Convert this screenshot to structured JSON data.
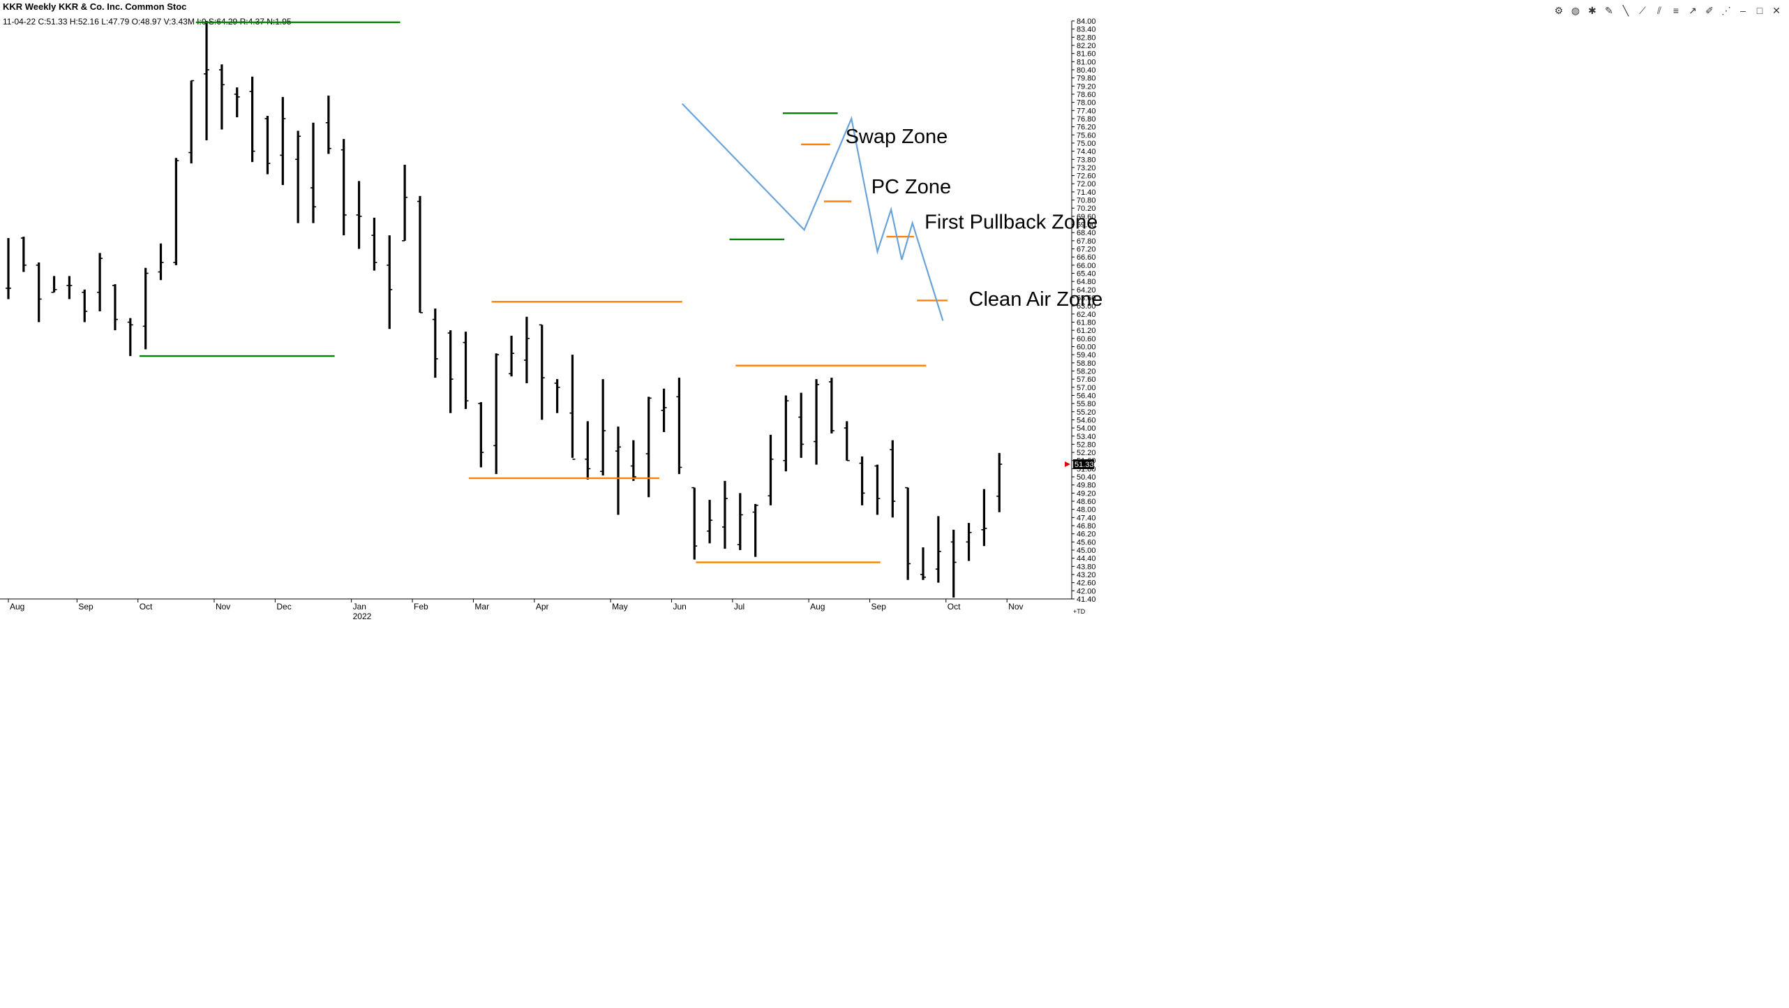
{
  "header": {
    "title": "KKR Weekly KKR & Co. Inc. Common Stoc",
    "stats": "11-04-22 C:51.33 H:52.16 L:47.79 O:48.97 V:3.43M I:0 S:64.29 R:4.37 N:1.95"
  },
  "toolbar": {
    "icons": [
      "gear-icon",
      "palette-icon",
      "settings-icon",
      "pencil-icon",
      "line-icon",
      "slash-icon",
      "channel-icon",
      "fib-icon",
      "ray-icon",
      "brush-icon",
      "zigzag-icon",
      "minimize-icon",
      "maximize-icon",
      "close-icon"
    ]
  },
  "colors": {
    "bars": "#000000",
    "green": "#008000",
    "orange": "#ff8000",
    "blue": "#6aa3d9",
    "price_tag": "#000000"
  },
  "chart_data": {
    "type": "ohlc",
    "title": "KKR Weekly KKR & Co. Inc. Common Stoc",
    "ylim": [
      41.4,
      84.0
    ],
    "y_ticks": [
      "84.00",
      "83.40",
      "82.80",
      "82.20",
      "81.60",
      "81.00",
      "80.40",
      "79.80",
      "79.20",
      "78.60",
      "78.00",
      "77.40",
      "76.80",
      "76.20",
      "75.60",
      "75.00",
      "74.40",
      "73.80",
      "73.20",
      "72.60",
      "72.00",
      "71.40",
      "70.80",
      "70.20",
      "69.60",
      "69.00",
      "68.40",
      "67.80",
      "67.20",
      "66.60",
      "66.00",
      "65.40",
      "64.80",
      "64.20",
      "63.60",
      "63.00",
      "62.40",
      "61.80",
      "61.20",
      "60.60",
      "60.00",
      "59.40",
      "58.80",
      "58.20",
      "57.60",
      "57.00",
      "56.40",
      "55.80",
      "55.20",
      "54.60",
      "54.00",
      "53.40",
      "52.80",
      "52.20",
      "51.60",
      "51.00",
      "50.40",
      "49.80",
      "49.20",
      "48.60",
      "48.00",
      "47.40",
      "46.80",
      "46.20",
      "45.60",
      "45.00",
      "44.40",
      "43.80",
      "43.20",
      "42.60",
      "42.00",
      "41.40"
    ],
    "x_labels": [
      {
        "label": "Aug",
        "index": 0
      },
      {
        "label": "Sep",
        "index": 4.5
      },
      {
        "label": "Oct",
        "index": 8.5
      },
      {
        "label": "Nov",
        "index": 13.5
      },
      {
        "label": "Dec",
        "index": 17.5
      },
      {
        "label": "Jan",
        "index": 22.5
      },
      {
        "label": "Feb",
        "index": 26.5
      },
      {
        "label": "Mar",
        "index": 30.5
      },
      {
        "label": "Apr",
        "index": 34.5
      },
      {
        "label": "May",
        "index": 39.5
      },
      {
        "label": "Jun",
        "index": 43.5
      },
      {
        "label": "Jul",
        "index": 47.5
      },
      {
        "label": "Aug",
        "index": 52.5
      },
      {
        "label": "Sep",
        "index": 56.5
      },
      {
        "label": "Oct",
        "index": 61.5
      },
      {
        "label": "Nov",
        "index": 65.5
      }
    ],
    "year_label": {
      "label": "2022",
      "index": 22.5
    },
    "last_price": "51.33",
    "corner_label": "+TD",
    "bars": [
      {
        "o": 64.3,
        "h": 68.0,
        "l": 63.5,
        "c": 64.3
      },
      {
        "o": 68.0,
        "h": 68.1,
        "l": 65.5,
        "c": 66.0
      },
      {
        "o": 66.0,
        "h": 66.2,
        "l": 61.8,
        "c": 63.5
      },
      {
        "o": 64.0,
        "h": 65.2,
        "l": 64.0,
        "c": 64.2
      },
      {
        "o": 64.5,
        "h": 65.2,
        "l": 63.5,
        "c": 64.5
      },
      {
        "o": 64.0,
        "h": 64.2,
        "l": 61.8,
        "c": 62.6
      },
      {
        "o": 64.0,
        "h": 66.9,
        "l": 62.6,
        "c": 66.5
      },
      {
        "o": 64.5,
        "h": 64.6,
        "l": 61.2,
        "c": 62.0
      },
      {
        "o": 61.8,
        "h": 62.1,
        "l": 59.3,
        "c": 61.6
      },
      {
        "o": 61.5,
        "h": 65.8,
        "l": 59.8,
        "c": 65.4
      },
      {
        "o": 65.5,
        "h": 67.6,
        "l": 64.9,
        "c": 66.2
      },
      {
        "o": 66.2,
        "h": 73.9,
        "l": 66.0,
        "c": 73.7
      },
      {
        "o": 74.3,
        "h": 79.6,
        "l": 73.5,
        "c": 79.6
      },
      {
        "o": 80.1,
        "h": 84.0,
        "l": 75.2,
        "c": 80.4
      },
      {
        "o": 80.4,
        "h": 80.8,
        "l": 76.0,
        "c": 79.3
      },
      {
        "o": 78.6,
        "h": 79.1,
        "l": 76.9,
        "c": 78.4
      },
      {
        "o": 78.8,
        "h": 79.9,
        "l": 73.6,
        "c": 74.4
      },
      {
        "o": 76.8,
        "h": 77.0,
        "l": 72.7,
        "c": 73.5
      },
      {
        "o": 74.1,
        "h": 78.4,
        "l": 71.9,
        "c": 76.8
      },
      {
        "o": 73.8,
        "h": 75.9,
        "l": 69.1,
        "c": 75.5
      },
      {
        "o": 71.7,
        "h": 76.5,
        "l": 69.1,
        "c": 70.3
      },
      {
        "o": 76.5,
        "h": 78.5,
        "l": 74.2,
        "c": 74.6
      },
      {
        "o": 74.5,
        "h": 75.3,
        "l": 68.2,
        "c": 69.7
      },
      {
        "o": 69.7,
        "h": 72.2,
        "l": 67.2,
        "c": 69.6
      },
      {
        "o": 68.2,
        "h": 69.5,
        "l": 65.6,
        "c": 66.2
      },
      {
        "o": 66.0,
        "h": 68.2,
        "l": 61.3,
        "c": 64.2
      },
      {
        "o": 67.8,
        "h": 73.4,
        "l": 67.8,
        "c": 71.0
      },
      {
        "o": 70.7,
        "h": 71.1,
        "l": 62.5,
        "c": 62.5
      },
      {
        "o": 62.0,
        "h": 62.8,
        "l": 57.7,
        "c": 59.1
      },
      {
        "o": 61.0,
        "h": 61.2,
        "l": 55.1,
        "c": 57.6
      },
      {
        "o": 60.3,
        "h": 61.1,
        "l": 55.4,
        "c": 56.0
      },
      {
        "o": 55.8,
        "h": 55.9,
        "l": 51.1,
        "c": 52.2
      },
      {
        "o": 52.7,
        "h": 59.5,
        "l": 50.6,
        "c": 59.4
      },
      {
        "o": 58.0,
        "h": 60.8,
        "l": 57.8,
        "c": 59.5
      },
      {
        "o": 59.0,
        "h": 62.2,
        "l": 57.3,
        "c": 60.6
      },
      {
        "o": 61.6,
        "h": 61.6,
        "l": 54.6,
        "c": 57.7
      },
      {
        "o": 57.3,
        "h": 57.6,
        "l": 55.1,
        "c": 57.0
      },
      {
        "o": 55.1,
        "h": 59.4,
        "l": 51.8,
        "c": 51.7
      },
      {
        "o": 51.7,
        "h": 54.5,
        "l": 50.2,
        "c": 51.0
      },
      {
        "o": 50.8,
        "h": 57.6,
        "l": 50.5,
        "c": 53.8
      },
      {
        "o": 52.3,
        "h": 54.1,
        "l": 47.6,
        "c": 52.6
      },
      {
        "o": 51.2,
        "h": 53.1,
        "l": 50.1,
        "c": 50.4
      },
      {
        "o": 52.1,
        "h": 56.3,
        "l": 48.9,
        "c": 56.2
      },
      {
        "o": 55.3,
        "h": 56.9,
        "l": 53.7,
        "c": 55.5
      },
      {
        "o": 56.3,
        "h": 57.7,
        "l": 50.6,
        "c": 51.1
      },
      {
        "o": 49.6,
        "h": 49.6,
        "l": 44.3,
        "c": 45.3
      },
      {
        "o": 46.4,
        "h": 48.7,
        "l": 45.5,
        "c": 47.2
      },
      {
        "o": 46.7,
        "h": 50.1,
        "l": 45.1,
        "c": 48.8
      },
      {
        "o": 45.4,
        "h": 49.2,
        "l": 45.0,
        "c": 47.6
      },
      {
        "o": 47.8,
        "h": 48.4,
        "l": 44.5,
        "c": 48.3
      },
      {
        "o": 49.0,
        "h": 53.5,
        "l": 48.3,
        "c": 51.7
      },
      {
        "o": 51.6,
        "h": 56.4,
        "l": 50.8,
        "c": 56.0
      },
      {
        "o": 54.8,
        "h": 56.6,
        "l": 51.8,
        "c": 52.8
      },
      {
        "o": 53.0,
        "h": 57.6,
        "l": 51.3,
        "c": 57.2
      },
      {
        "o": 57.4,
        "h": 57.7,
        "l": 53.6,
        "c": 53.8
      },
      {
        "o": 54.0,
        "h": 54.5,
        "l": 51.6,
        "c": 51.6
      },
      {
        "o": 51.4,
        "h": 51.9,
        "l": 48.3,
        "c": 49.2
      },
      {
        "o": 51.2,
        "h": 51.3,
        "l": 47.6,
        "c": 48.8
      },
      {
        "o": 52.4,
        "h": 53.1,
        "l": 47.4,
        "c": 48.6
      },
      {
        "o": 49.6,
        "h": 49.6,
        "l": 42.8,
        "c": 44.0
      },
      {
        "o": 43.2,
        "h": 45.2,
        "l": 42.8,
        "c": 43.0
      },
      {
        "o": 43.6,
        "h": 47.5,
        "l": 42.6,
        "c": 44.9
      },
      {
        "o": 45.6,
        "h": 46.5,
        "l": 41.5,
        "c": 44.1
      },
      {
        "o": 45.6,
        "h": 47.0,
        "l": 44.2,
        "c": 46.3
      },
      {
        "o": 46.5,
        "h": 49.5,
        "l": 45.3,
        "c": 46.6
      },
      {
        "o": 48.97,
        "h": 52.16,
        "l": 47.79,
        "c": 51.33
      }
    ],
    "green_levels": [
      {
        "y": 83.9,
        "x0": 12.3,
        "x1": 25.7
      },
      {
        "y": 59.3,
        "x0": 8.6,
        "x1": 21.4
      },
      {
        "y": 77.2,
        "x0": 50.8,
        "x1": 54.4
      },
      {
        "y": 67.9,
        "x0": 47.3,
        "x1": 50.9
      }
    ],
    "orange_levels": [
      {
        "y": 63.3,
        "x0": 31.7,
        "x1": 44.2
      },
      {
        "y": 50.3,
        "x0": 30.2,
        "x1": 42.7
      },
      {
        "y": 44.1,
        "x0": 45.1,
        "x1": 57.2
      },
      {
        "y": 58.6,
        "x0": 47.7,
        "x1": 60.2
      },
      {
        "y": 74.9,
        "x0": 52.0,
        "x1": 53.9
      },
      {
        "y": 70.7,
        "x0": 53.5,
        "x1": 55.3
      },
      {
        "y": 68.1,
        "x0": 57.6,
        "x1": 59.4
      },
      {
        "y": 63.4,
        "x0": 59.6,
        "x1": 61.6
      }
    ],
    "schematic_path": [
      {
        "x": 44.2,
        "y": 77.9
      },
      {
        "x": 52.2,
        "y": 68.6
      },
      {
        "x": 55.3,
        "y": 76.8
      },
      {
        "x": 57.0,
        "y": 67.0
      },
      {
        "x": 57.9,
        "y": 70.1
      },
      {
        "x": 58.6,
        "y": 66.4
      },
      {
        "x": 59.3,
        "y": 69.1
      },
      {
        "x": 61.3,
        "y": 61.9
      }
    ],
    "annotations": [
      {
        "text": "Swap Zone",
        "x": 54.9,
        "y": 75.0
      },
      {
        "text": "PC Zone",
        "x": 56.6,
        "y": 71.3
      },
      {
        "text": "First Pullback Zone",
        "x": 60.1,
        "y": 68.7
      },
      {
        "text": "Clean Air Zone",
        "x": 63.0,
        "y": 63.0
      }
    ]
  }
}
